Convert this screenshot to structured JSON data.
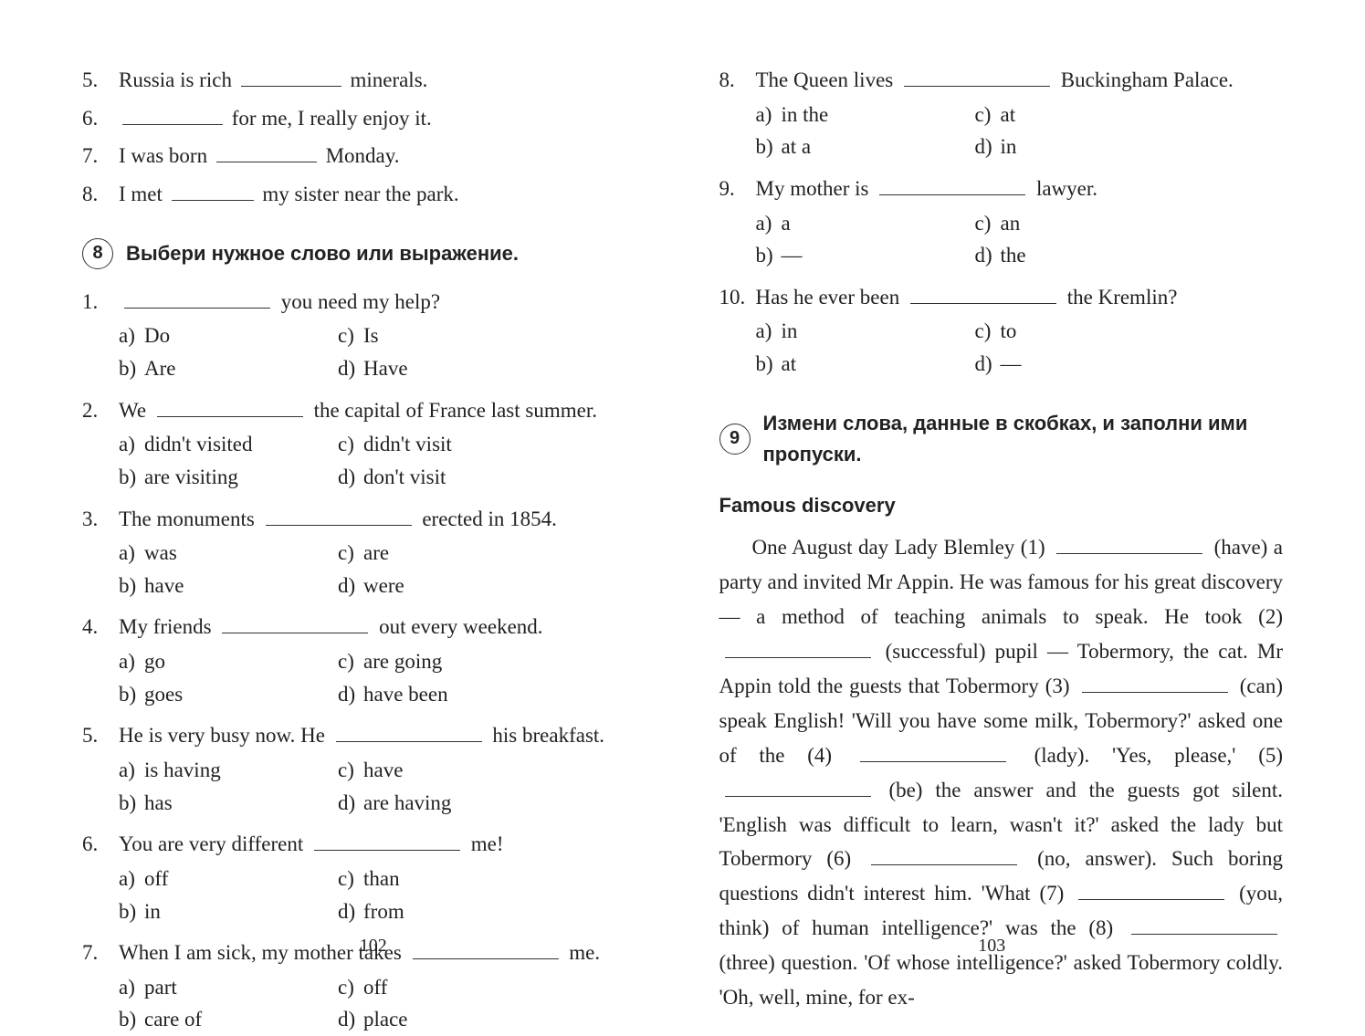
{
  "pages": {
    "left_num": "102",
    "right_num": "103"
  },
  "top_fill": {
    "items": [
      {
        "n": "5.",
        "pre": "Russia is rich",
        "post": " minerals."
      },
      {
        "n": "6.",
        "pre": "",
        "post": " for me, I really enjoy it."
      },
      {
        "n": "7.",
        "pre": "I was born",
        "post": " Monday."
      },
      {
        "n": "8.",
        "pre": "I met",
        "post": " my sister near the park."
      }
    ]
  },
  "ex8": {
    "number": "8",
    "title": "Выбери нужное слово или выражение.",
    "items": [
      {
        "n": "1.",
        "pre": "",
        "post": " you need my help?",
        "a": "Do",
        "b": "Are",
        "c": "Is",
        "d": "Have"
      },
      {
        "n": "2.",
        "pre": "We",
        "post": " the capital of France last summer.",
        "a": "didn't visited",
        "b": "are visiting",
        "c": "didn't visit",
        "d": "don't visit"
      },
      {
        "n": "3.",
        "pre": "The monuments",
        "post": " erected in 1854.",
        "a": "was",
        "b": "have",
        "c": "are",
        "d": "were"
      },
      {
        "n": "4.",
        "pre": "My friends",
        "post": " out every weekend.",
        "a": "go",
        "b": "goes",
        "c": "are going",
        "d": "have been"
      },
      {
        "n": "5.",
        "pre": "He is very busy now. He",
        "post": " his breakfast.",
        "a": "is having",
        "b": "has",
        "c": "have",
        "d": "are having"
      },
      {
        "n": "6.",
        "pre": "You are very different",
        "post": " me!",
        "a": "off",
        "b": "in",
        "c": "than",
        "d": "from"
      },
      {
        "n": "7.",
        "pre": "When I am sick, my mother takes",
        "post": " me.",
        "a": "part",
        "b": "care of",
        "c": "off",
        "d": "place"
      }
    ]
  },
  "ex8r": {
    "items": [
      {
        "n": "8.",
        "pre": "The Queen lives",
        "post": " Buckingham Palace.",
        "a": "in the",
        "b": "at a",
        "c": "at",
        "d": "in"
      },
      {
        "n": "9.",
        "pre": "My mother is",
        "post": " lawyer.",
        "a": "a",
        "b": "—",
        "c": "an",
        "d": "the"
      },
      {
        "n": "10.",
        "pre": "Has he ever been",
        "post": " the Kremlin?",
        "a": "in",
        "b": "at",
        "c": "to",
        "d": "—"
      }
    ]
  },
  "ex9": {
    "number": "9",
    "title": "Измени слова, данные в скобках, и заполни ими пропуски.",
    "subtitle": "Famous discovery",
    "p1a": "One August day Lady Blemley (1)",
    "p1b": " (have) a party and invited Mr Appin. He was famous for his great discovery — a method of teaching animals to speak. He took (2)",
    "p1c": " (successful) pupil — Tobermory, the cat. Mr Appin told the guests that Tobermory (3)",
    "p1d": " (can) speak English! 'Will you have some milk, Tobermory?' asked one of the (4)",
    "p1e": " (lady). 'Yes, please,' (5)",
    "p1f": " (be) the answer and the guests got silent. 'English was difficult to learn, wasn't it?' asked the lady but Tobermory (6)",
    "p1g": " (no, answer). Such boring questions didn't interest him. 'What (7)",
    "p1h": " (you, think) of human intelligence?' was the (8)",
    "p1i": " (three) question. 'Of whose intelligence?' asked Tobermory coldly. 'Oh, well, mine, for ex-"
  },
  "opt_labels": {
    "a": "a)",
    "b": "b)",
    "c": "c)",
    "d": "d)"
  }
}
